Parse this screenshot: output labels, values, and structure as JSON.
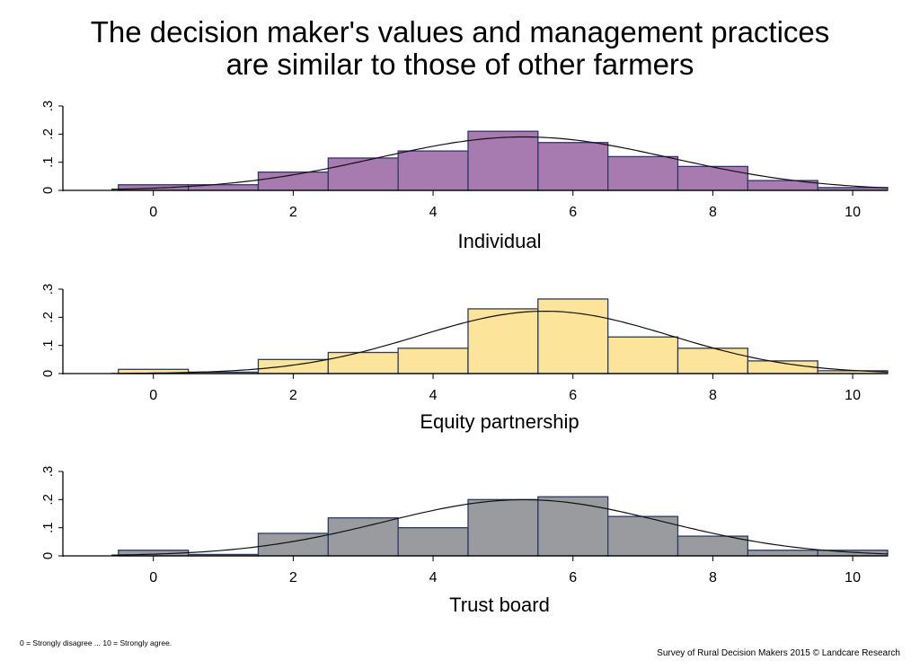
{
  "title_line1": "The decision maker's values and management practices",
  "title_line2": "are similar to those of other farmers",
  "footnote_left": "0 = Strongly disagree ... 10 = Strongly agree.",
  "footnote_right": "Survey of Rural Decision Makers 2015 © Landcare Research",
  "chart_data": [
    {
      "type": "bar",
      "subtype": "histogram with normal density curve",
      "xlabel": "Individual",
      "xlim": [
        -0.6,
        10.5
      ],
      "ylim": [
        0,
        0.3
      ],
      "xticks": [
        0,
        2,
        4,
        6,
        8,
        10
      ],
      "yticks": [
        0,
        0.1,
        0.2,
        0.3
      ],
      "ytick_labels": [
        "0",
        ".1",
        ".2",
        ".3"
      ],
      "categories": [
        "0",
        "1",
        "2",
        "3",
        "4",
        "5",
        "6",
        "7",
        "8",
        "9",
        "10"
      ],
      "values": [
        0.02,
        0.02,
        0.065,
        0.115,
        0.14,
        0.21,
        0.17,
        0.12,
        0.085,
        0.035,
        0.01
      ],
      "curve": {
        "mean": 5.3,
        "sd": 2.1
      },
      "fill": "#a87bb0",
      "grid": false
    },
    {
      "type": "bar",
      "subtype": "histogram with normal density curve",
      "xlabel": "Equity partnership",
      "xlim": [
        -0.6,
        10.5
      ],
      "ylim": [
        0,
        0.3
      ],
      "xticks": [
        0,
        2,
        4,
        6,
        8,
        10
      ],
      "yticks": [
        0,
        0.1,
        0.2,
        0.3
      ],
      "ytick_labels": [
        "0",
        ".1",
        ".2",
        ".3"
      ],
      "categories": [
        "0",
        "1",
        "2",
        "3",
        "4",
        "5",
        "6",
        "7",
        "8",
        "9",
        "10"
      ],
      "values": [
        0.015,
        0.005,
        0.05,
        0.075,
        0.09,
        0.23,
        0.265,
        0.13,
        0.09,
        0.045,
        0.01
      ],
      "curve": {
        "mean": 5.6,
        "sd": 1.8
      },
      "fill": "#fce49a",
      "grid": false
    },
    {
      "type": "bar",
      "subtype": "histogram with normal density curve",
      "xlabel": "Trust board",
      "xlim": [
        -0.6,
        10.5
      ],
      "ylim": [
        0,
        0.3
      ],
      "xticks": [
        0,
        2,
        4,
        6,
        8,
        10
      ],
      "yticks": [
        0,
        0.1,
        0.2,
        0.3
      ],
      "ytick_labels": [
        "0",
        ".1",
        ".2",
        ".3"
      ],
      "categories": [
        "0",
        "1",
        "2",
        "3",
        "4",
        "5",
        "6",
        "7",
        "8",
        "9",
        "10"
      ],
      "values": [
        0.02,
        0.005,
        0.08,
        0.135,
        0.1,
        0.2,
        0.21,
        0.14,
        0.07,
        0.02,
        0.02
      ],
      "curve": {
        "mean": 5.3,
        "sd": 2.0
      },
      "fill": "#9a9b9e",
      "grid": false
    }
  ]
}
